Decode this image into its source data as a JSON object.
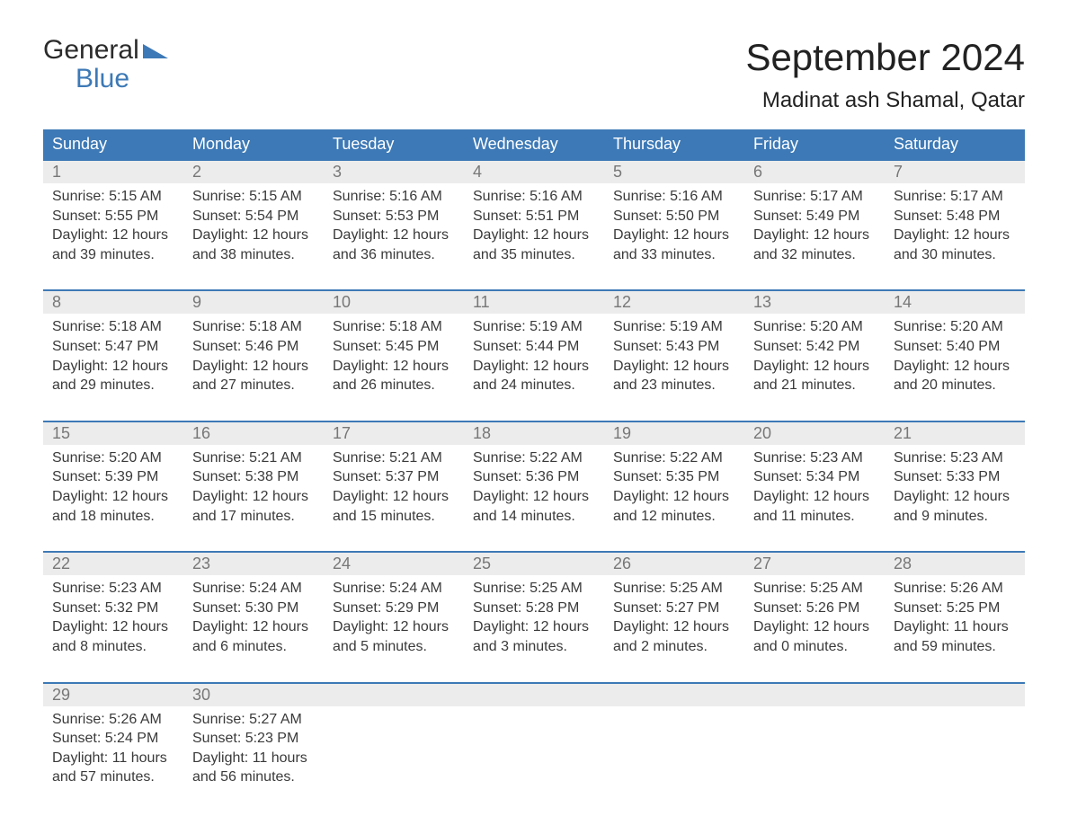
{
  "logo": {
    "line1": "General",
    "line2": "Blue"
  },
  "title": "September 2024",
  "subtitle": "Madinat ash Shamal, Qatar",
  "colors": {
    "header_bg": "#3d79b6",
    "header_text": "#ffffff",
    "daynum_bg": "#ececec",
    "daynum_text": "#777777",
    "body_text": "#3a3a3a",
    "rule": "#3d79b6",
    "page_bg": "#ffffff"
  },
  "typography": {
    "title_fontsize": 42,
    "subtitle_fontsize": 24,
    "header_fontsize": 18,
    "daynum_fontsize": 18,
    "body_fontsize": 16,
    "font_family": "Arial"
  },
  "day_headers": [
    "Sunday",
    "Monday",
    "Tuesday",
    "Wednesday",
    "Thursday",
    "Friday",
    "Saturday"
  ],
  "weeks": [
    [
      {
        "n": "1",
        "sunrise": "5:15 AM",
        "sunset": "5:55 PM",
        "daylight": "12 hours and 39 minutes."
      },
      {
        "n": "2",
        "sunrise": "5:15 AM",
        "sunset": "5:54 PM",
        "daylight": "12 hours and 38 minutes."
      },
      {
        "n": "3",
        "sunrise": "5:16 AM",
        "sunset": "5:53 PM",
        "daylight": "12 hours and 36 minutes."
      },
      {
        "n": "4",
        "sunrise": "5:16 AM",
        "sunset": "5:51 PM",
        "daylight": "12 hours and 35 minutes."
      },
      {
        "n": "5",
        "sunrise": "5:16 AM",
        "sunset": "5:50 PM",
        "daylight": "12 hours and 33 minutes."
      },
      {
        "n": "6",
        "sunrise": "5:17 AM",
        "sunset": "5:49 PM",
        "daylight": "12 hours and 32 minutes."
      },
      {
        "n": "7",
        "sunrise": "5:17 AM",
        "sunset": "5:48 PM",
        "daylight": "12 hours and 30 minutes."
      }
    ],
    [
      {
        "n": "8",
        "sunrise": "5:18 AM",
        "sunset": "5:47 PM",
        "daylight": "12 hours and 29 minutes."
      },
      {
        "n": "9",
        "sunrise": "5:18 AM",
        "sunset": "5:46 PM",
        "daylight": "12 hours and 27 minutes."
      },
      {
        "n": "10",
        "sunrise": "5:18 AM",
        "sunset": "5:45 PM",
        "daylight": "12 hours and 26 minutes."
      },
      {
        "n": "11",
        "sunrise": "5:19 AM",
        "sunset": "5:44 PM",
        "daylight": "12 hours and 24 minutes."
      },
      {
        "n": "12",
        "sunrise": "5:19 AM",
        "sunset": "5:43 PM",
        "daylight": "12 hours and 23 minutes."
      },
      {
        "n": "13",
        "sunrise": "5:20 AM",
        "sunset": "5:42 PM",
        "daylight": "12 hours and 21 minutes."
      },
      {
        "n": "14",
        "sunrise": "5:20 AM",
        "sunset": "5:40 PM",
        "daylight": "12 hours and 20 minutes."
      }
    ],
    [
      {
        "n": "15",
        "sunrise": "5:20 AM",
        "sunset": "5:39 PM",
        "daylight": "12 hours and 18 minutes."
      },
      {
        "n": "16",
        "sunrise": "5:21 AM",
        "sunset": "5:38 PM",
        "daylight": "12 hours and 17 minutes."
      },
      {
        "n": "17",
        "sunrise": "5:21 AM",
        "sunset": "5:37 PM",
        "daylight": "12 hours and 15 minutes."
      },
      {
        "n": "18",
        "sunrise": "5:22 AM",
        "sunset": "5:36 PM",
        "daylight": "12 hours and 14 minutes."
      },
      {
        "n": "19",
        "sunrise": "5:22 AM",
        "sunset": "5:35 PM",
        "daylight": "12 hours and 12 minutes."
      },
      {
        "n": "20",
        "sunrise": "5:23 AM",
        "sunset": "5:34 PM",
        "daylight": "12 hours and 11 minutes."
      },
      {
        "n": "21",
        "sunrise": "5:23 AM",
        "sunset": "5:33 PM",
        "daylight": "12 hours and 9 minutes."
      }
    ],
    [
      {
        "n": "22",
        "sunrise": "5:23 AM",
        "sunset": "5:32 PM",
        "daylight": "12 hours and 8 minutes."
      },
      {
        "n": "23",
        "sunrise": "5:24 AM",
        "sunset": "5:30 PM",
        "daylight": "12 hours and 6 minutes."
      },
      {
        "n": "24",
        "sunrise": "5:24 AM",
        "sunset": "5:29 PM",
        "daylight": "12 hours and 5 minutes."
      },
      {
        "n": "25",
        "sunrise": "5:25 AM",
        "sunset": "5:28 PM",
        "daylight": "12 hours and 3 minutes."
      },
      {
        "n": "26",
        "sunrise": "5:25 AM",
        "sunset": "5:27 PM",
        "daylight": "12 hours and 2 minutes."
      },
      {
        "n": "27",
        "sunrise": "5:25 AM",
        "sunset": "5:26 PM",
        "daylight": "12 hours and 0 minutes."
      },
      {
        "n": "28",
        "sunrise": "5:26 AM",
        "sunset": "5:25 PM",
        "daylight": "11 hours and 59 minutes."
      }
    ],
    [
      {
        "n": "29",
        "sunrise": "5:26 AM",
        "sunset": "5:24 PM",
        "daylight": "11 hours and 57 minutes."
      },
      {
        "n": "30",
        "sunrise": "5:27 AM",
        "sunset": "5:23 PM",
        "daylight": "11 hours and 56 minutes."
      },
      null,
      null,
      null,
      null,
      null
    ]
  ],
  "labels": {
    "sunrise": "Sunrise:",
    "sunset": "Sunset:",
    "daylight": "Daylight:"
  }
}
